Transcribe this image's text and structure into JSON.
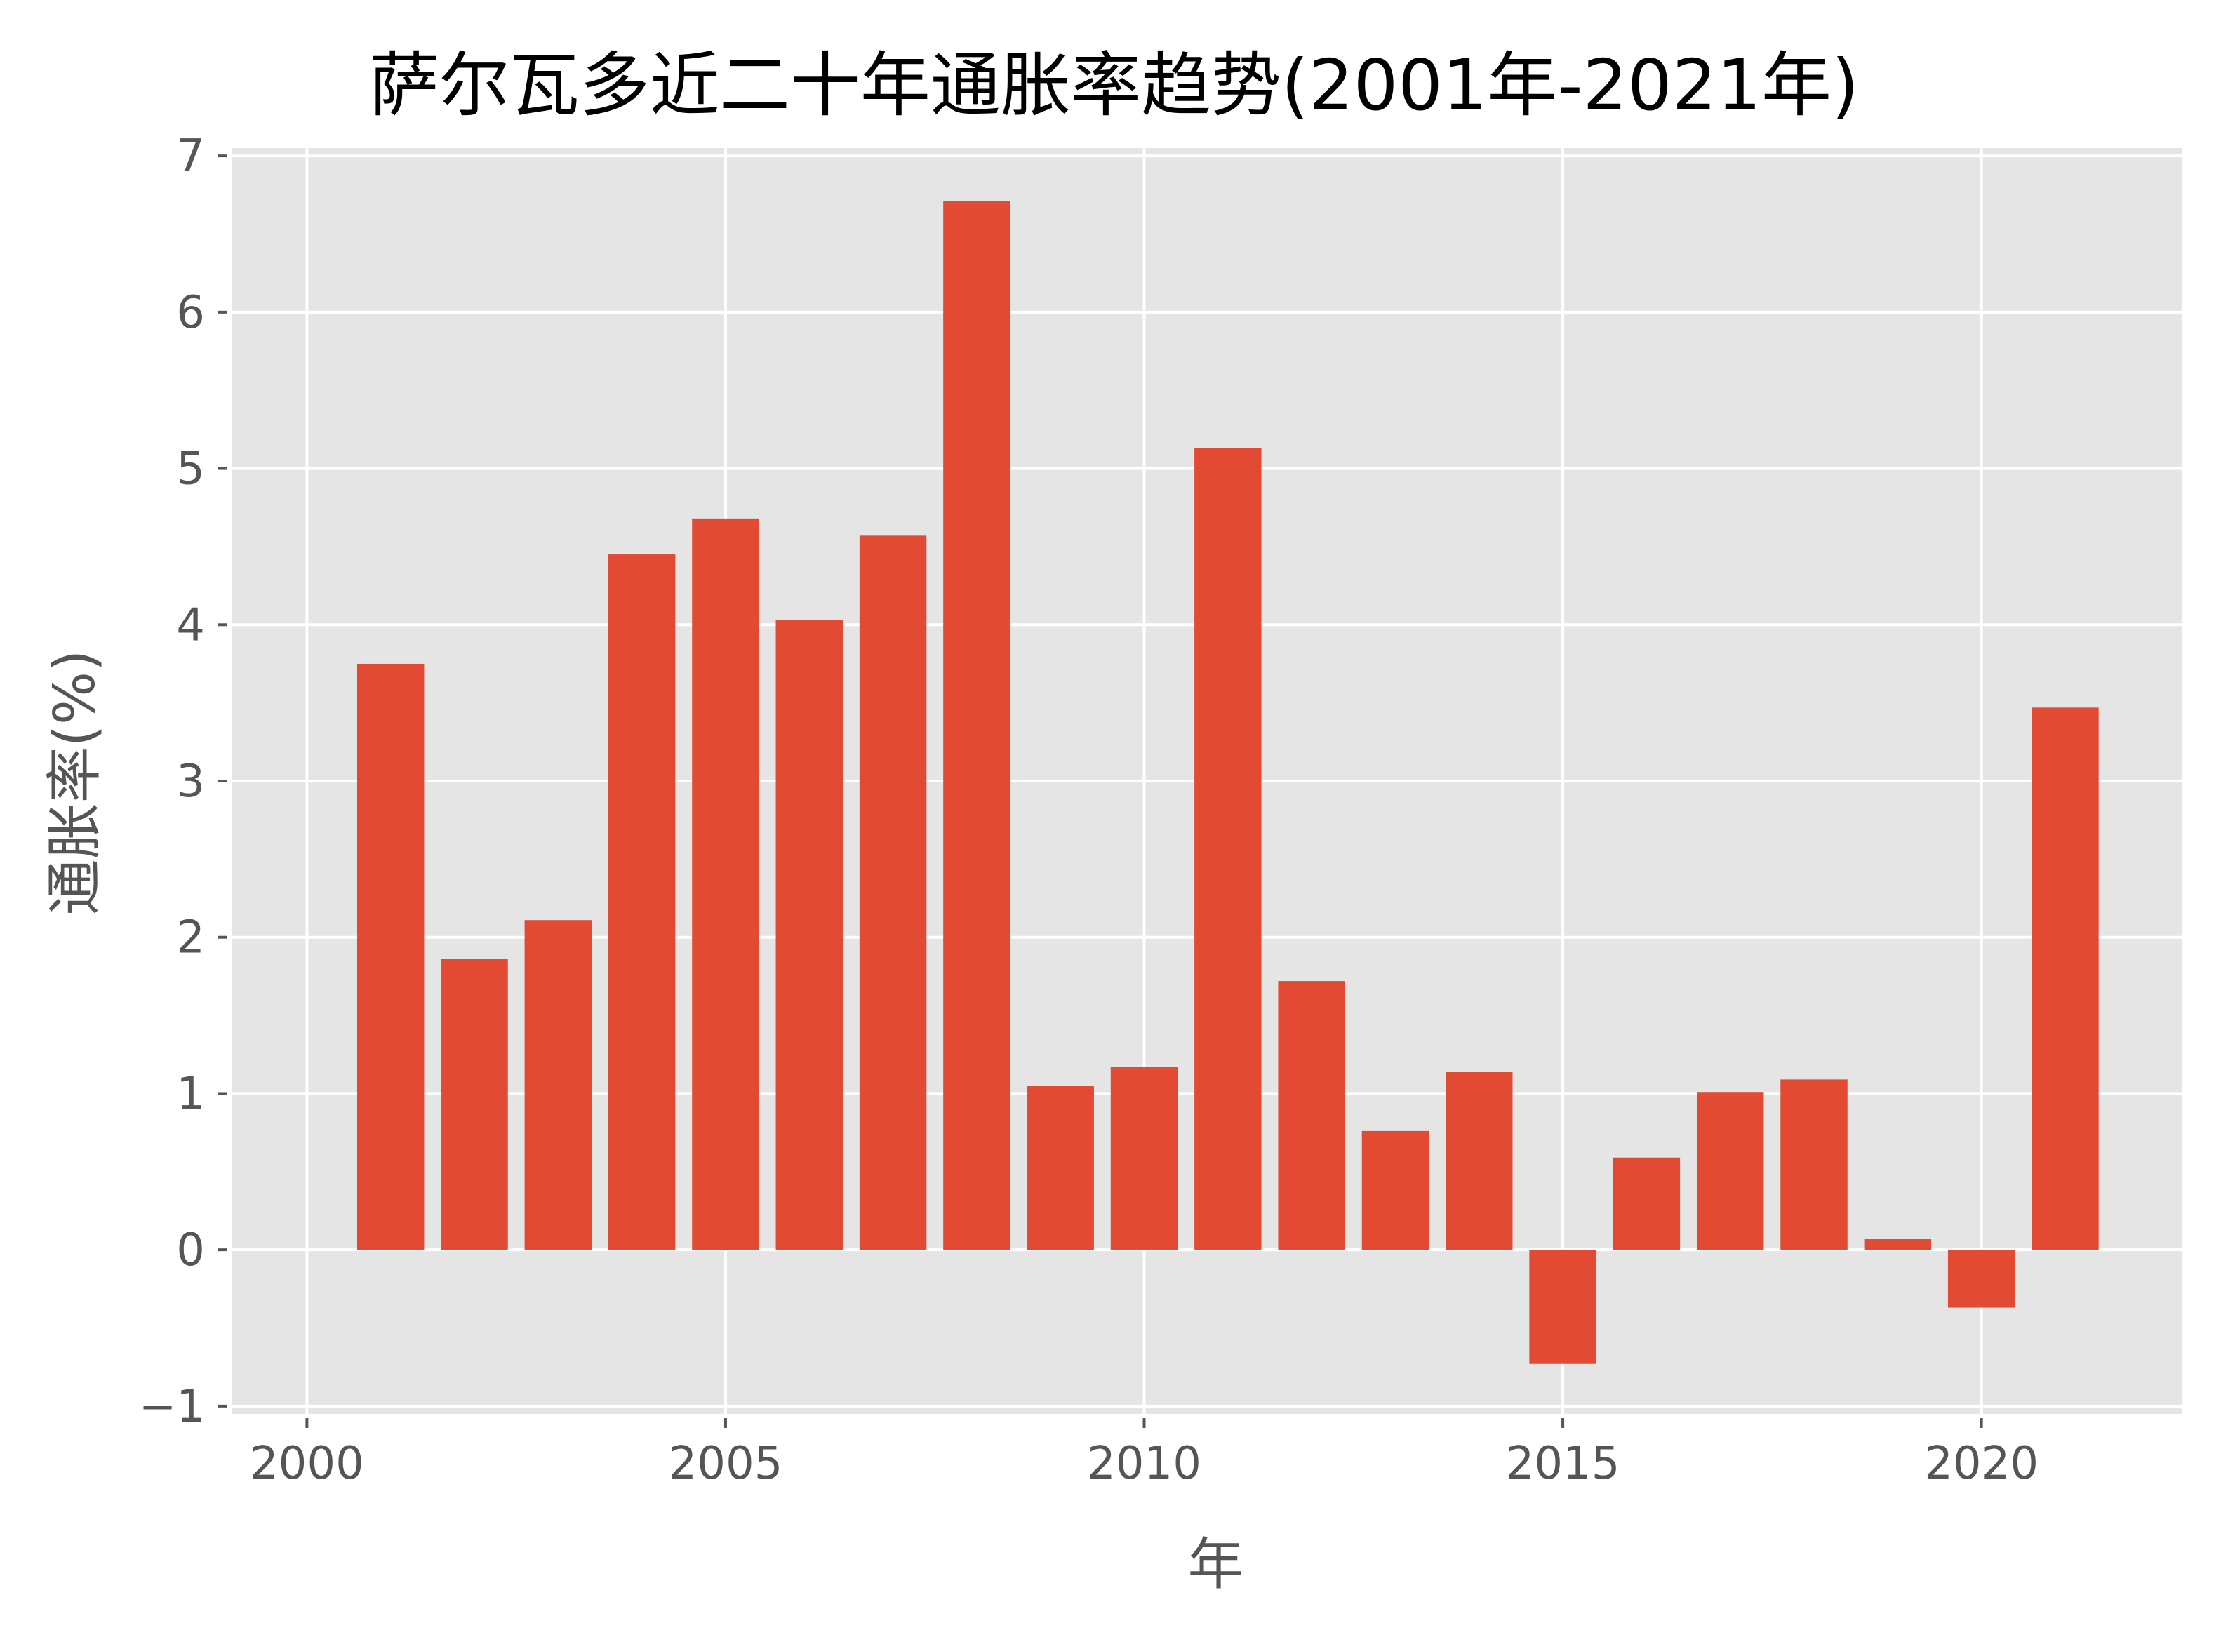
{
  "chart_data": {
    "type": "bar",
    "title": "萨尔瓦多近二十年通胀率趋势(2001年-2021年)",
    "xlabel": "年",
    "ylabel": "通胀率(%)",
    "categories": [
      2001,
      2002,
      2003,
      2004,
      2005,
      2006,
      2007,
      2008,
      2009,
      2010,
      2011,
      2012,
      2013,
      2014,
      2015,
      2016,
      2017,
      2018,
      2019,
      2020,
      2021
    ],
    "values": [
      3.75,
      1.86,
      2.11,
      4.45,
      4.68,
      4.03,
      4.57,
      6.71,
      1.05,
      1.17,
      5.13,
      1.72,
      0.76,
      1.14,
      -0.73,
      0.59,
      1.01,
      1.09,
      0.07,
      -0.37,
      3.47
    ],
    "xticks": [
      2000,
      2005,
      2010,
      2015,
      2020
    ],
    "yticks": [
      -1,
      0,
      1,
      2,
      3,
      4,
      5,
      6,
      7
    ],
    "xlim": [
      1999.1,
      2022.4
    ],
    "ylim": [
      -1.05,
      7.05
    ],
    "grid": true,
    "bar_color": "#E24A33",
    "background_color": "#E5E5E5",
    "style": "ggplot"
  }
}
